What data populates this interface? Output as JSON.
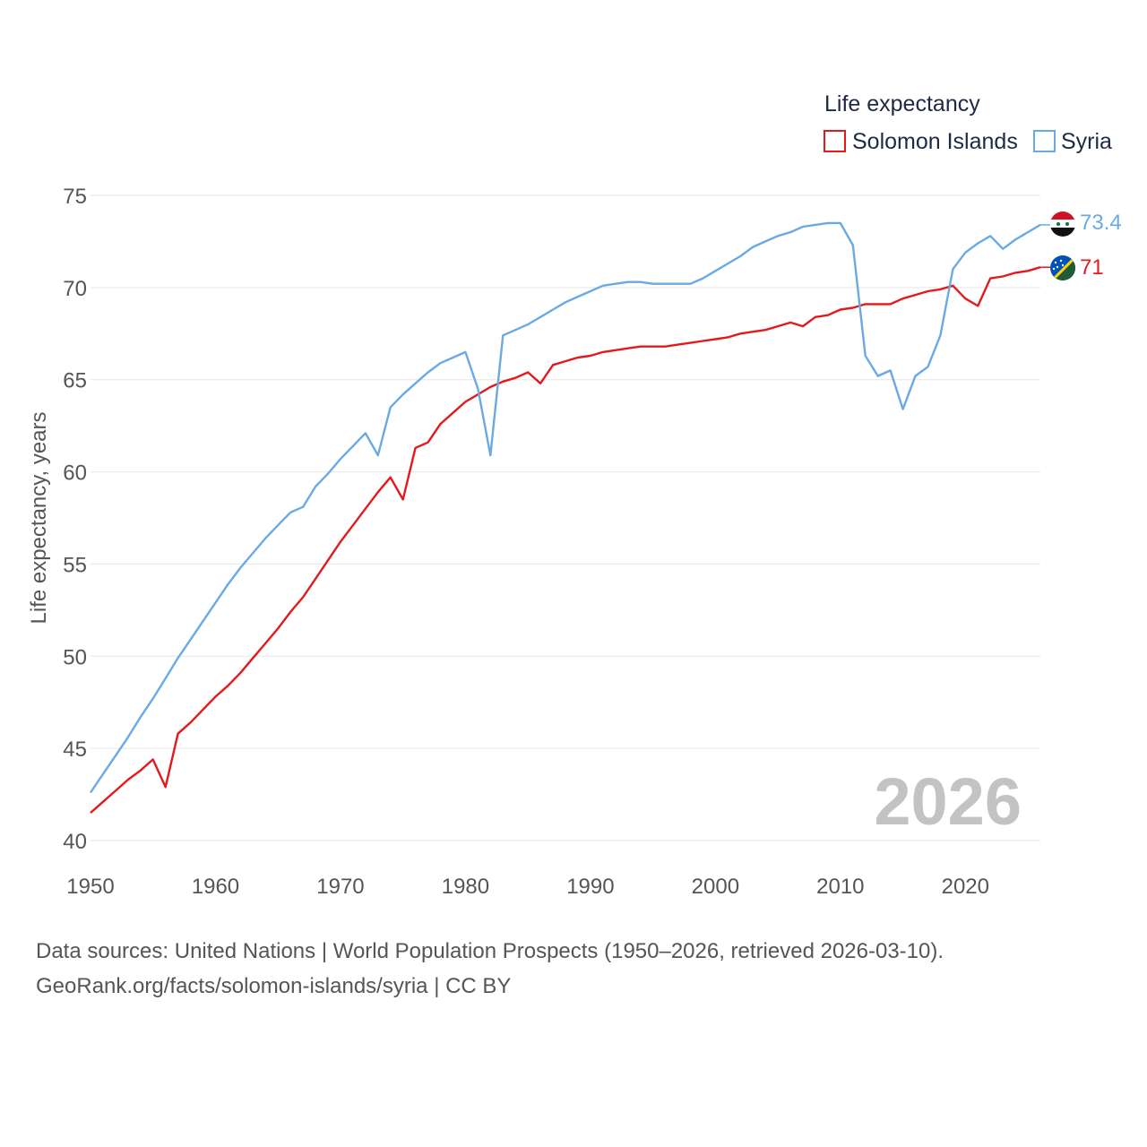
{
  "chart_data": {
    "type": "line",
    "legend_title": "Life expectancy",
    "ylabel": "Life expectancy, years",
    "xlabel": "",
    "xlim": [
      1950,
      2026
    ],
    "ylim": [
      40,
      75
    ],
    "x_ticks": [
      "1950",
      "1960",
      "1970",
      "1980",
      "1990",
      "2000",
      "2010",
      "2020"
    ],
    "y_ticks": [
      "40",
      "45",
      "50",
      "55",
      "60",
      "65",
      "70",
      "75"
    ],
    "current_year": "2026",
    "x": [
      1950,
      1951,
      1952,
      1953,
      1954,
      1955,
      1956,
      1957,
      1958,
      1959,
      1960,
      1961,
      1962,
      1963,
      1964,
      1965,
      1966,
      1967,
      1968,
      1969,
      1970,
      1971,
      1972,
      1973,
      1974,
      1975,
      1976,
      1977,
      1978,
      1979,
      1980,
      1981,
      1982,
      1983,
      1984,
      1985,
      1986,
      1987,
      1988,
      1989,
      1990,
      1991,
      1992,
      1993,
      1994,
      1995,
      1996,
      1997,
      1998,
      1999,
      2000,
      2001,
      2002,
      2003,
      2004,
      2005,
      2006,
      2007,
      2008,
      2009,
      2010,
      2011,
      2012,
      2013,
      2014,
      2015,
      2016,
      2017,
      2018,
      2019,
      2020,
      2021,
      2022,
      2023,
      2024,
      2025,
      2026
    ],
    "series": [
      {
        "name": "Solomon Islands",
        "color": "#e31a1c",
        "end_label": "71",
        "values": [
          41.5,
          42.1,
          42.7,
          43.3,
          43.8,
          44.4,
          42.9,
          45.8,
          46.4,
          47.1,
          47.8,
          48.4,
          49.1,
          49.9,
          50.7,
          51.5,
          52.4,
          53.2,
          54.2,
          55.2,
          56.2,
          57.1,
          58.0,
          58.9,
          59.7,
          58.5,
          61.3,
          61.6,
          62.6,
          63.2,
          63.8,
          64.2,
          64.6,
          64.9,
          65.1,
          65.4,
          64.8,
          65.8,
          66.0,
          66.2,
          66.3,
          66.5,
          66.6,
          66.7,
          66.8,
          66.8,
          66.8,
          66.9,
          67.0,
          67.1,
          67.2,
          67.3,
          67.5,
          67.6,
          67.7,
          67.9,
          68.1,
          67.9,
          68.4,
          68.5,
          68.8,
          68.9,
          69.1,
          69.1,
          69.1,
          69.4,
          69.6,
          69.8,
          69.9,
          70.1,
          69.4,
          69.0,
          70.5,
          70.6,
          70.8,
          70.9,
          71.1
        ]
      },
      {
        "name": "Syria",
        "color": "#6aaae4",
        "end_label": "73.4",
        "values": [
          42.6,
          43.6,
          44.6,
          45.6,
          46.7,
          47.7,
          48.8,
          49.9,
          50.9,
          51.9,
          52.9,
          53.9,
          54.8,
          55.6,
          56.4,
          57.1,
          57.8,
          58.1,
          59.2,
          59.9,
          60.7,
          61.4,
          62.1,
          60.9,
          63.5,
          64.2,
          64.8,
          65.4,
          65.9,
          66.2,
          66.5,
          64.5,
          60.9,
          67.4,
          67.7,
          68.0,
          68.4,
          68.8,
          69.2,
          69.5,
          69.8,
          70.1,
          70.2,
          70.3,
          70.3,
          70.2,
          70.2,
          70.2,
          70.2,
          70.5,
          70.9,
          71.3,
          71.7,
          72.2,
          72.5,
          72.8,
          73.0,
          73.3,
          73.4,
          73.5,
          73.5,
          72.3,
          66.3,
          65.2,
          65.5,
          63.4,
          65.2,
          65.7,
          67.4,
          71.0,
          71.9,
          72.4,
          72.8,
          72.1,
          72.6,
          73.0,
          73.4
        ]
      }
    ]
  },
  "footer": {
    "source_line": "Data sources: United Nations | World Population Prospects (1950–2026, retrieved 2026-03-10).",
    "credit_line": "GeoRank.org/facts/solomon-islands/syria | CC BY"
  },
  "flags": {
    "syria": "syria-flag-icon",
    "solomon_islands": "solomon-islands-flag-icon"
  }
}
